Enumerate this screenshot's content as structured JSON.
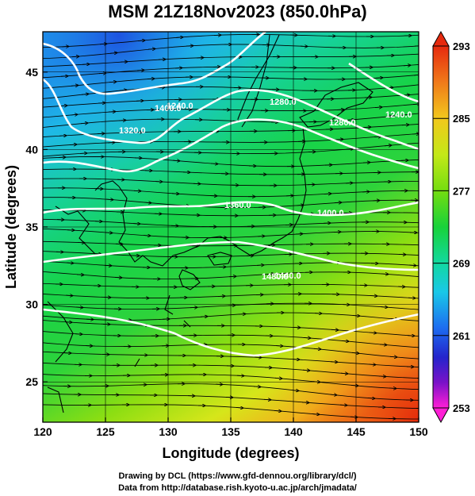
{
  "title": "MSM 21Z18Nov2023 (850.0hPa)",
  "map": {
    "lon_range": [
      120,
      150
    ],
    "lat_range": [
      22.4,
      47.6
    ],
    "xlabel": "Longitude (degrees)",
    "ylabel": "Latitude  (degrees)",
    "xticks": [
      120,
      125,
      130,
      135,
      140,
      145,
      150
    ],
    "yticks": [
      25,
      30,
      35,
      40,
      45
    ],
    "grid": true,
    "contour_labels": [
      "1240.0",
      "1280.0",
      "1280.0",
      "1320.0",
      "1360.0",
      "1400.0",
      "1400.0",
      "1440.0",
      "1480.0",
      "1240.0"
    ]
  },
  "colorbar": {
    "ticks": [
      "293",
      "285",
      "277",
      "269",
      "261",
      "253"
    ],
    "min": 253,
    "max": 293,
    "colors": [
      "#ff1fd6",
      "#7a12c8",
      "#2424cc",
      "#1d6cf0",
      "#19c8e8",
      "#12d8a0",
      "#18d23a",
      "#74dd10",
      "#c4e818",
      "#f2c81c",
      "#f07a1a",
      "#e62a0e"
    ]
  },
  "credits": {
    "line1": "Drawing by DCL (https://www.gfd-dennou.org/library/dcl/)",
    "line2": "Data from http://database.rish.kyoto-u.ac.jp/arch/jmadata/"
  }
}
